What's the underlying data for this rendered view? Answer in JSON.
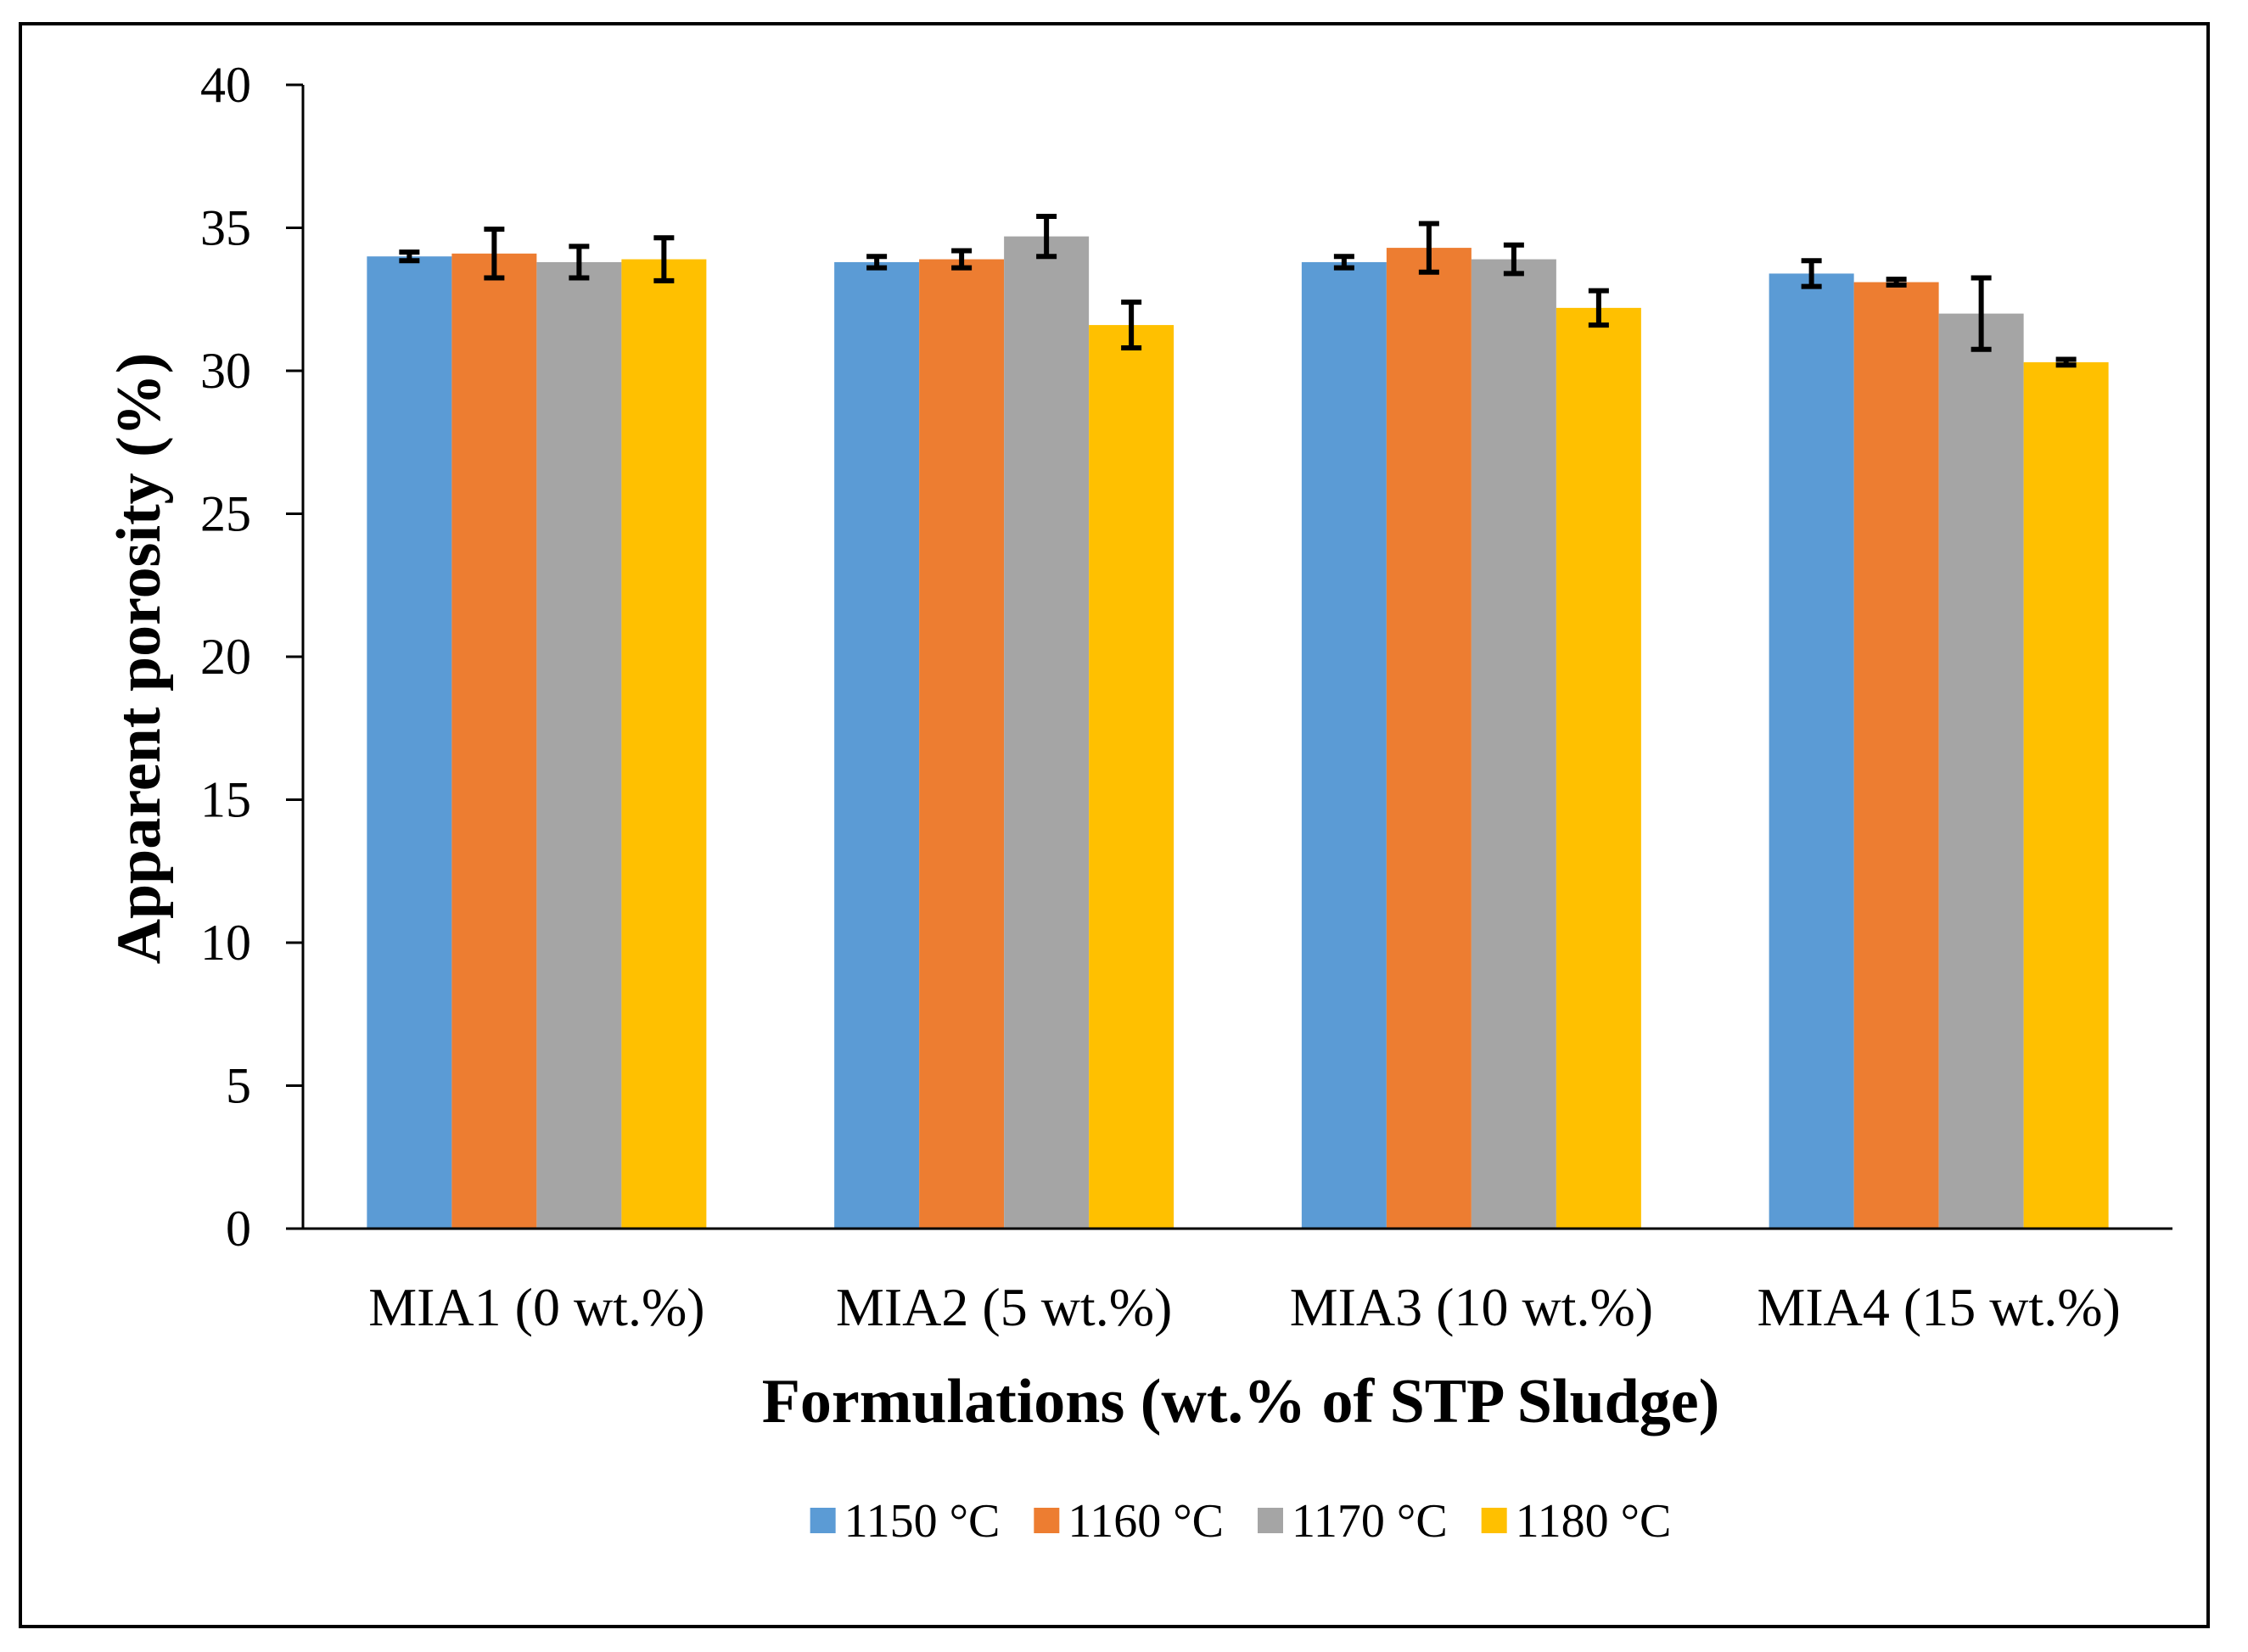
{
  "chart_data": {
    "type": "bar",
    "title": "",
    "xlabel": "Formulations (wt.% of STP Sludge)",
    "ylabel": "Apparent porosity (%)",
    "ylim": [
      0,
      40
    ],
    "yticks": [
      0,
      5,
      10,
      15,
      20,
      25,
      30,
      35,
      40
    ],
    "grid": false,
    "legend_position": "bottom",
    "categories": [
      "MIA1 (0 wt.%)",
      "MIA2 (5 wt.%)",
      "MIA3 (10 wt.%)",
      "MIA4 (15 wt.%)"
    ],
    "series": [
      {
        "name": "1150 °C",
        "color": "#5B9BD5",
        "values": [
          34.0,
          33.8,
          33.8,
          33.4
        ],
        "errors": [
          0.15,
          0.2,
          0.2,
          0.45
        ]
      },
      {
        "name": "1160 °C",
        "color": "#ED7D31",
        "values": [
          34.1,
          33.9,
          34.3,
          33.1
        ],
        "errors": [
          0.85,
          0.3,
          0.85,
          0.1
        ]
      },
      {
        "name": "1170 °C",
        "color": "#A5A5A5",
        "values": [
          33.8,
          34.7,
          33.9,
          32.0
        ],
        "errors": [
          0.55,
          0.7,
          0.5,
          1.25
        ]
      },
      {
        "name": "1180 °C",
        "color": "#FFC000",
        "values": [
          33.9,
          31.6,
          32.2,
          30.3
        ],
        "errors": [
          0.75,
          0.8,
          0.6,
          0.1
        ]
      }
    ]
  }
}
